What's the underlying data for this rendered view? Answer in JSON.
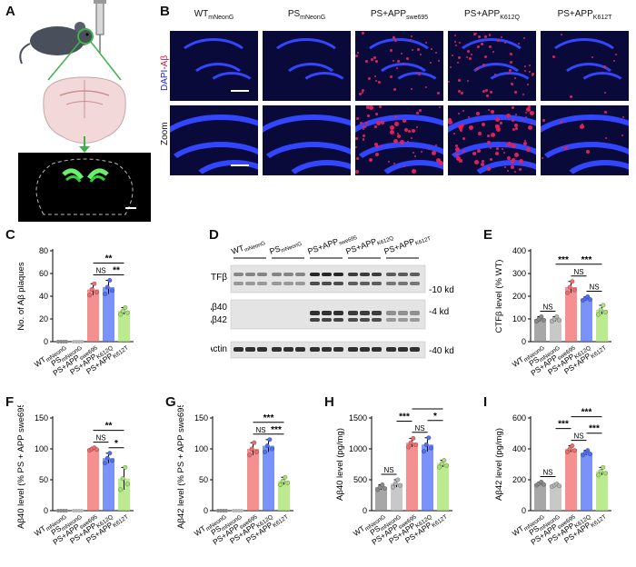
{
  "panels": {
    "A": "A",
    "B": "B",
    "C": "C",
    "D": "D",
    "E": "E",
    "F": "F",
    "G": "G",
    "H": "H",
    "I": "I"
  },
  "groups_short": [
    "WT",
    "PS",
    "PS+APP",
    "PS+APP",
    "PS+APP"
  ],
  "groups_sub": [
    "mNeonG",
    "mNeonG",
    "swe695",
    "K612Q",
    "K612T"
  ],
  "B": {
    "row_labels": [
      "DAPI-Aβ",
      "Zoom"
    ]
  },
  "D": {
    "lane_labels": [
      "WT",
      "PS",
      "PS+APP",
      "PS+APP",
      "PS+APP"
    ],
    "lane_subs": [
      "mNeonG",
      "mNeonG",
      "swe695",
      "K612Q",
      "K612T"
    ],
    "row_labels": [
      "CTFβ",
      "Aβ40",
      "Aβ42",
      "β-Actin"
    ],
    "kd_labels": [
      "-10 kd",
      "-4 kd",
      "-40 kd"
    ]
  },
  "colors": {
    "wt": "#8a8a8a",
    "ps": "#b5b5b5",
    "swe": "#f26b6b",
    "k612q": "#4f6ef7",
    "k612t": "#a6e36a",
    "dapi": "#2b3fe0",
    "abeta": "#e0205a",
    "brain_bg": "#000000",
    "label_blue": "#2020d0",
    "label_red": "#e0102a"
  },
  "chart_data": [
    {
      "id": "C",
      "type": "bar",
      "ylabel": "No. of Aβ plaques",
      "yticks": [
        0,
        20,
        40,
        60,
        80
      ],
      "ylim": [
        0,
        80
      ],
      "categories": [
        "WT mNeonG",
        "PS mNeonG",
        "PS+APP swe695",
        "PS+APP K612Q",
        "PS+APP K612T"
      ],
      "values": [
        0,
        0,
        46,
        48,
        27
      ],
      "errors": [
        0,
        0,
        5,
        6,
        3
      ],
      "annotations": [
        {
          "label": "**",
          "from": 2,
          "to": 4,
          "level": 1
        },
        {
          "label": "NS",
          "from": 2,
          "to": 3,
          "level": 0
        },
        {
          "label": "**",
          "from": 3,
          "to": 4,
          "level": 0
        }
      ]
    },
    {
      "id": "E",
      "type": "bar",
      "ylabel": "CTFβ level (% WT)",
      "yticks": [
        0,
        100,
        200,
        300,
        400
      ],
      "ylim": [
        0,
        400
      ],
      "categories": [
        "WT mNeonG",
        "PS mNeonG",
        "PS+APP swe695",
        "PS+APP K612Q",
        "PS+APP K612T"
      ],
      "values": [
        100,
        100,
        240,
        190,
        140
      ],
      "errors": [
        10,
        10,
        25,
        8,
        20
      ],
      "annotations": [
        {
          "label": "NS",
          "from": 0,
          "to": 1,
          "level": 0
        },
        {
          "label": "***",
          "from": 1,
          "to": 2,
          "level": 1
        },
        {
          "label": "***",
          "from": 2,
          "to": 4,
          "level": 1
        },
        {
          "label": "NS",
          "from": 2,
          "to": 3,
          "level": 0
        },
        {
          "label": "NS",
          "from": 3,
          "to": 4,
          "level": 0
        }
      ]
    },
    {
      "id": "F",
      "type": "bar",
      "ylabel": "Aβ40 level (% PS + APP swe695)",
      "yticks": [
        0,
        50,
        100,
        150
      ],
      "ylim": [
        0,
        150
      ],
      "categories": [
        "WT mNeonG",
        "PS mNeonG",
        "PS+APP swe695",
        "PS+APP K612Q",
        "PS+APP K612T"
      ],
      "values": [
        0,
        0,
        100,
        85,
        52
      ],
      "errors": [
        0,
        0,
        2,
        8,
        18
      ],
      "annotations": [
        {
          "label": "**",
          "from": 2,
          "to": 4,
          "level": 1
        },
        {
          "label": "NS",
          "from": 2,
          "to": 3,
          "level": 0
        },
        {
          "label": "*",
          "from": 3,
          "to": 4,
          "level": 0
        }
      ]
    },
    {
      "id": "G",
      "type": "bar",
      "ylabel": "Aβ42 level (% PS + APP swe695)",
      "yticks": [
        0,
        50,
        100,
        150
      ],
      "ylim": [
        0,
        150
      ],
      "categories": [
        "WT mNeonG",
        "PS mNeonG",
        "PS+APP swe695",
        "PS+APP K612Q",
        "PS+APP K612T"
      ],
      "values": [
        0,
        0,
        100,
        105,
        48
      ],
      "errors": [
        0,
        0,
        10,
        10,
        6
      ],
      "annotations": [
        {
          "label": "***",
          "from": 2,
          "to": 4,
          "level": 1
        },
        {
          "label": "NS",
          "from": 2,
          "to": 3,
          "level": 0
        },
        {
          "label": "***",
          "from": 3,
          "to": 4,
          "level": 0
        }
      ]
    },
    {
      "id": "H",
      "type": "bar",
      "ylabel": "Aβ40 level (pg/mg)",
      "yticks": [
        0,
        500,
        1000,
        1500
      ],
      "ylim": [
        0,
        1500
      ],
      "categories": [
        "WT mNeonG",
        "PS mNeonG",
        "PS+APP swe695",
        "PS+APP K612Q",
        "PS+APP K612T"
      ],
      "values": [
        380,
        440,
        1100,
        1070,
        760
      ],
      "errors": [
        40,
        60,
        70,
        110,
        55
      ],
      "annotations": [
        {
          "label": "NS",
          "from": 0,
          "to": 1,
          "level": 0
        },
        {
          "label": "***",
          "from": 1,
          "to": 2,
          "level": 1
        },
        {
          "label": "*",
          "from": 2,
          "to": 4,
          "level": 2
        },
        {
          "label": "NS",
          "from": 2,
          "to": 3,
          "level": 0
        },
        {
          "label": "*",
          "from": 3,
          "to": 4,
          "level": 1
        }
      ]
    },
    {
      "id": "I",
      "type": "bar",
      "ylabel": "Aβ42 level (pg/mg)",
      "yticks": [
        0,
        200,
        400,
        600
      ],
      "ylim": [
        0,
        600
      ],
      "categories": [
        "WT mNeonG",
        "PS mNeonG",
        "PS+APP swe695",
        "PS+APP K612Q",
        "PS+APP K612T"
      ],
      "values": [
        175,
        165,
        400,
        375,
        255
      ],
      "errors": [
        10,
        8,
        20,
        15,
        25
      ],
      "annotations": [
        {
          "label": "NS",
          "from": 0,
          "to": 1,
          "level": 0
        },
        {
          "label": "***",
          "from": 1,
          "to": 2,
          "level": 1
        },
        {
          "label": "***",
          "from": 2,
          "to": 4,
          "level": 2
        },
        {
          "label": "NS",
          "from": 2,
          "to": 3,
          "level": 0
        },
        {
          "label": "***",
          "from": 3,
          "to": 4,
          "level": 1
        }
      ]
    }
  ]
}
